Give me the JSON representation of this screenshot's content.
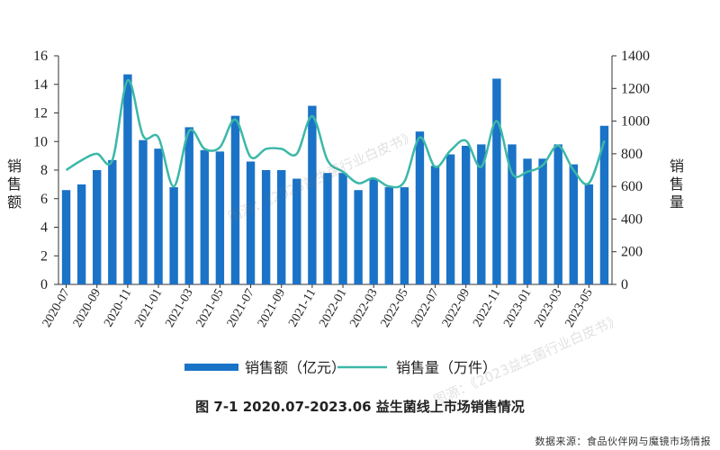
{
  "caption": "图 7-1 2020.07-2023.06 益生菌线上市场销售情况",
  "source": "数据来源：食品伙伴网与魔镜市场情报",
  "watermark": "图源：《2023益生菌行业白皮书》",
  "colors": {
    "bar": "#1a73c7",
    "line": "#3cb8a8",
    "axis": "#333333"
  },
  "chart_data": {
    "type": "bar",
    "title": "图 7-1 2020.07-2023.06 益生菌线上市场销售情况",
    "ylabel_left": "销售额",
    "ylabel_right": "销售量",
    "ylim_left": [
      0,
      16
    ],
    "ylim_right": [
      0,
      1400
    ],
    "yticks_left": [
      0,
      2,
      4,
      6,
      8,
      10,
      12,
      14,
      16
    ],
    "yticks_right": [
      0,
      200,
      400,
      600,
      800,
      1000,
      1200,
      1400
    ],
    "categories": [
      "2020-07",
      "2020-08",
      "2020-09",
      "2020-10",
      "2020-11",
      "2020-12",
      "2021-01",
      "2021-02",
      "2021-03",
      "2021-04",
      "2021-05",
      "2021-06",
      "2021-07",
      "2021-08",
      "2021-09",
      "2021-10",
      "2021-11",
      "2021-12",
      "2022-01",
      "2022-02",
      "2022-03",
      "2022-04",
      "2022-05",
      "2022-06",
      "2022-07",
      "2022-08",
      "2022-09",
      "2022-10",
      "2022-11",
      "2022-12",
      "2023-01",
      "2023-02",
      "2023-03",
      "2023-04",
      "2023-05",
      "2023-06"
    ],
    "xtick_labels": [
      "2020-07",
      "2020-09",
      "2020-11",
      "2021-01",
      "2021-03",
      "2021-05",
      "2021-07",
      "2021-09",
      "2021-11",
      "2022-01",
      "2022-03",
      "2022-05",
      "2022-07",
      "2022-09",
      "2022-11",
      "2023-01",
      "2023-03",
      "2023-05"
    ],
    "legend_position": "bottom",
    "grid": false,
    "series": [
      {
        "name": "销售额（亿元）",
        "type": "bar",
        "axis": "left",
        "values": [
          6.6,
          7.0,
          8.0,
          8.7,
          14.7,
          10.1,
          9.5,
          6.8,
          11.0,
          9.4,
          9.3,
          11.8,
          8.6,
          8.0,
          8.0,
          7.4,
          12.5,
          7.8,
          7.8,
          6.6,
          7.4,
          6.8,
          6.8,
          10.7,
          8.3,
          9.1,
          9.7,
          9.8,
          14.4,
          9.8,
          8.8,
          8.8,
          9.8,
          8.4,
          7.0,
          11.1
        ]
      },
      {
        "name": "销售量（万件）",
        "type": "line",
        "axis": "right",
        "values": [
          700,
          760,
          800,
          760,
          1250,
          910,
          900,
          600,
          940,
          830,
          840,
          1010,
          780,
          830,
          830,
          800,
          1030,
          760,
          690,
          620,
          650,
          600,
          630,
          900,
          720,
          820,
          880,
          720,
          1000,
          680,
          690,
          730,
          850,
          700,
          620,
          880
        ]
      }
    ]
  }
}
